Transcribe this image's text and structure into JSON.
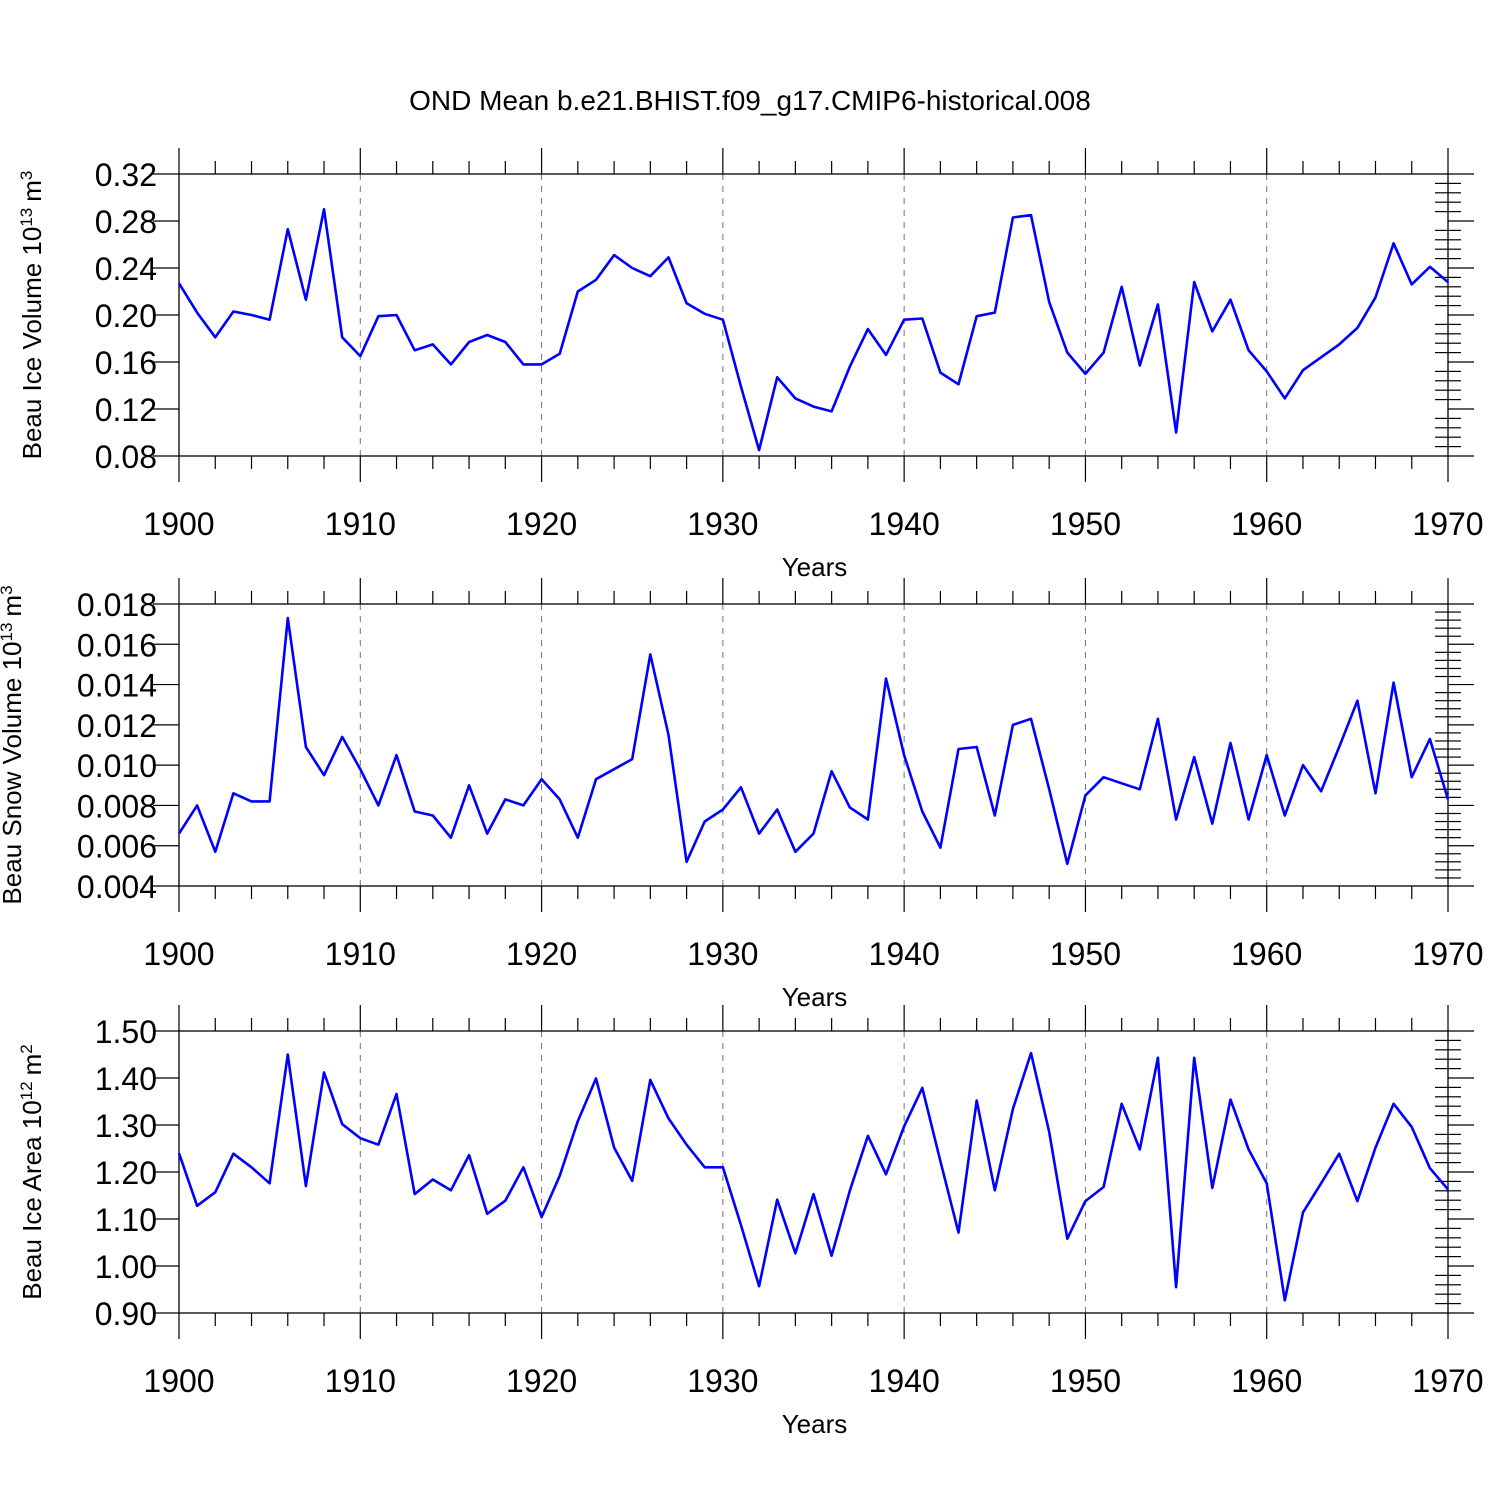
{
  "figure_title": "OND Mean b.e21.BHIST.f09_g17.CMIP6-historical.008",
  "chart_data": [
    {
      "type": "line",
      "ylabel_main": "Beau Ice Volume 10",
      "ylabel_exp": "13",
      "ylabel_unit": "m",
      "ylabel_unit_exp": "3",
      "xlabel": "Years",
      "xlim": [
        1900,
        1970
      ],
      "ylim": [
        0.08,
        0.32
      ],
      "yticks": [
        0.08,
        0.12,
        0.16,
        0.2,
        0.24,
        0.28,
        0.32
      ],
      "ytick_labels": [
        "0.08",
        "0.12",
        "0.16",
        "0.20",
        "0.24",
        "0.28",
        "0.32"
      ],
      "xticks": [
        1900,
        1910,
        1920,
        1930,
        1940,
        1950,
        1960,
        1970
      ],
      "xtick_labels": [
        "1900",
        "1910",
        "1920",
        "1930",
        "1940",
        "1950",
        "1960",
        "1970"
      ],
      "grid_x": true,
      "series": [
        {
          "name": "Beau Ice Volume",
          "color": "#0000ff",
          "x_start": 1900,
          "values": [
            0.227,
            0.202,
            0.181,
            0.203,
            0.2,
            0.196,
            0.273,
            0.213,
            0.29,
            0.181,
            0.165,
            0.199,
            0.2,
            0.17,
            0.175,
            0.158,
            0.177,
            0.183,
            0.177,
            0.158,
            0.158,
            0.167,
            0.22,
            0.23,
            0.251,
            0.24,
            0.233,
            0.249,
            0.21,
            0.201,
            0.196,
            0.139,
            0.085,
            0.147,
            0.129,
            0.122,
            0.118,
            0.156,
            0.188,
            0.166,
            0.196,
            0.197,
            0.151,
            0.141,
            0.199,
            0.202,
            0.283,
            0.285,
            0.211,
            0.168,
            0.15,
            0.168,
            0.224,
            0.157,
            0.209,
            0.1,
            0.228,
            0.186,
            0.213,
            0.17,
            0.152,
            0.129,
            0.153,
            0.164,
            0.175,
            0.189,
            0.215,
            0.261,
            0.226,
            0.241,
            0.228
          ]
        }
      ]
    },
    {
      "type": "line",
      "ylabel_main": "Beau Snow Volume 10",
      "ylabel_exp": "13",
      "ylabel_unit": "m",
      "ylabel_unit_exp": "3",
      "xlabel": "Years",
      "xlim": [
        1900,
        1970
      ],
      "ylim": [
        0.004,
        0.018
      ],
      "yticks": [
        0.004,
        0.006,
        0.008,
        0.01,
        0.012,
        0.014,
        0.016,
        0.018
      ],
      "ytick_labels": [
        "0.004",
        "0.006",
        "0.008",
        "0.010",
        "0.012",
        "0.014",
        "0.016",
        "0.018"
      ],
      "xticks": [
        1900,
        1910,
        1920,
        1930,
        1940,
        1950,
        1960,
        1970
      ],
      "xtick_labels": [
        "1900",
        "1910",
        "1920",
        "1930",
        "1940",
        "1950",
        "1960",
        "1970"
      ],
      "grid_x": true,
      "series": [
        {
          "name": "Beau Snow Volume",
          "color": "#0000ff",
          "x_start": 1900,
          "values": [
            0.0066,
            0.008,
            0.0057,
            0.0086,
            0.0082,
            0.0082,
            0.0173,
            0.0109,
            0.0095,
            0.0114,
            0.0098,
            0.008,
            0.0105,
            0.0077,
            0.0075,
            0.0064,
            0.009,
            0.0066,
            0.0083,
            0.008,
            0.0093,
            0.0083,
            0.0064,
            0.0093,
            0.0098,
            0.0103,
            0.0155,
            0.0115,
            0.0052,
            0.0072,
            0.0078,
            0.0089,
            0.0066,
            0.0078,
            0.0057,
            0.0066,
            0.0097,
            0.0079,
            0.0073,
            0.0143,
            0.0105,
            0.0077,
            0.0059,
            0.0108,
            0.0109,
            0.0075,
            0.012,
            0.0123,
            0.0088,
            0.0051,
            0.0085,
            0.0094,
            0.0091,
            0.0088,
            0.0123,
            0.0073,
            0.0104,
            0.0071,
            0.0111,
            0.0073,
            0.0105,
            0.0075,
            0.01,
            0.0087,
            0.0109,
            0.0132,
            0.0086,
            0.0141,
            0.0094,
            0.0113,
            0.0083
          ]
        }
      ]
    },
    {
      "type": "line",
      "ylabel_main": "Beau Ice Area 10",
      "ylabel_exp": "12",
      "ylabel_unit": "m",
      "ylabel_unit_exp": "2",
      "xlabel": "Years",
      "xlim": [
        1900,
        1970
      ],
      "ylim": [
        0.9,
        1.5
      ],
      "yticks": [
        0.9,
        1.0,
        1.1,
        1.2,
        1.3,
        1.4,
        1.5
      ],
      "ytick_labels": [
        "0.90",
        "1.00",
        "1.10",
        "1.20",
        "1.30",
        "1.40",
        "1.50"
      ],
      "xticks": [
        1900,
        1910,
        1920,
        1930,
        1940,
        1950,
        1960,
        1970
      ],
      "xtick_labels": [
        "1900",
        "1910",
        "1920",
        "1930",
        "1940",
        "1950",
        "1960",
        "1970"
      ],
      "grid_x": true,
      "series": [
        {
          "name": "Beau Ice Area",
          "color": "#0000ff",
          "x_start": 1900,
          "values": [
            1.24,
            1.128,
            1.157,
            1.239,
            1.21,
            1.176,
            1.45,
            1.17,
            1.412,
            1.302,
            1.272,
            1.258,
            1.366,
            1.153,
            1.184,
            1.161,
            1.236,
            1.111,
            1.139,
            1.21,
            1.104,
            1.192,
            1.308,
            1.399,
            1.252,
            1.181,
            1.396,
            1.314,
            1.258,
            1.21,
            1.21,
            1.087,
            0.957,
            1.141,
            1.027,
            1.153,
            1.022,
            1.16,
            1.277,
            1.195,
            1.297,
            1.379,
            1.223,
            1.071,
            1.352,
            1.161,
            1.334,
            1.453,
            1.285,
            1.058,
            1.138,
            1.168,
            1.345,
            1.248,
            1.443,
            0.955,
            1.443,
            1.166,
            1.354,
            1.248,
            1.176,
            0.927,
            1.114,
            1.176,
            1.239,
            1.138,
            1.252,
            1.345,
            1.296,
            1.208,
            1.163
          ]
        }
      ]
    }
  ]
}
